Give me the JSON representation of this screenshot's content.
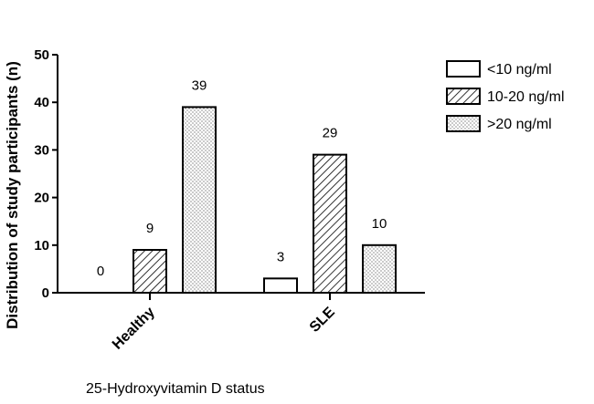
{
  "chart_data": {
    "type": "bar",
    "categories": [
      "Healthy",
      "SLE"
    ],
    "series": [
      {
        "name": "<10 ng/ml",
        "values": [
          0,
          3
        ],
        "pattern": "empty",
        "data_labels": [
          "0",
          "3"
        ]
      },
      {
        "name": "10-20 ng/ml",
        "values": [
          9,
          29
        ],
        "pattern": "hatch",
        "data_labels": [
          "9",
          "29"
        ]
      },
      {
        "name": ">20 ng/ml",
        "values": [
          39,
          10
        ],
        "pattern": "dots",
        "data_labels": [
          "39",
          "10"
        ]
      }
    ],
    "title": "",
    "xlabel": "25-Hydroxyvitamin D status",
    "ylabel": "Distribution of study participants (n)",
    "ylim": [
      0,
      50
    ],
    "yticks": [
      "0",
      "10",
      "20",
      "30",
      "40",
      "50"
    ],
    "grid": false,
    "legend": "right"
  }
}
